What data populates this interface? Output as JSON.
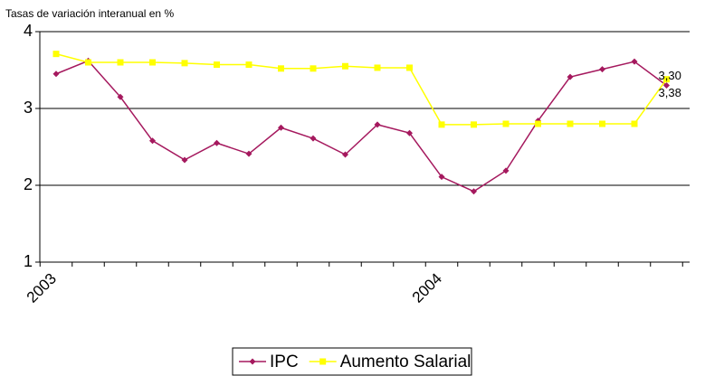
{
  "chart_data": {
    "type": "line",
    "y_label": "Tasas de variación interanual en %",
    "categories": [
      "2003",
      null,
      null,
      null,
      null,
      null,
      null,
      null,
      null,
      null,
      null,
      null,
      "2004",
      null,
      null,
      null,
      null,
      null,
      null,
      null
    ],
    "series": [
      {
        "name": "IPC",
        "color": "#a5195e",
        "marker": "diamond",
        "values": [
          3.45,
          3.62,
          3.15,
          2.58,
          2.33,
          2.55,
          2.41,
          2.75,
          2.61,
          2.4,
          2.79,
          2.68,
          2.11,
          1.92,
          2.19,
          2.84,
          3.41,
          3.51,
          3.61,
          3.3
        ],
        "value_labels": [
          null,
          null,
          null,
          null,
          null,
          null,
          null,
          null,
          null,
          null,
          null,
          null,
          null,
          null,
          null,
          null,
          null,
          null,
          null,
          "3,30"
        ]
      },
      {
        "name": "Aumento Salarial",
        "color": "#ffff00",
        "marker": "square",
        "values": [
          3.71,
          3.6,
          3.6,
          3.6,
          3.59,
          3.57,
          3.57,
          3.52,
          3.52,
          3.55,
          3.53,
          3.53,
          2.79,
          2.79,
          2.8,
          2.8,
          2.8,
          2.8,
          2.8,
          3.38
        ],
        "value_labels": [
          null,
          null,
          null,
          null,
          null,
          null,
          null,
          null,
          null,
          null,
          null,
          null,
          null,
          null,
          null,
          null,
          null,
          null,
          null,
          "3,38"
        ]
      }
    ],
    "ylim": [
      1,
      4
    ],
    "yticks": [
      1,
      2,
      3,
      4
    ],
    "grid": true,
    "legend": "bottom"
  }
}
